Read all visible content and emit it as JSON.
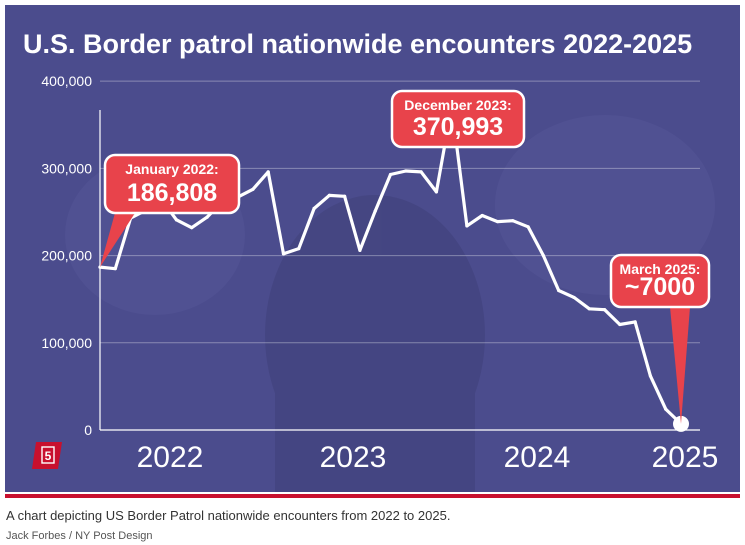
{
  "figure": {
    "background_color": "#4b4c8d",
    "accent_color": "#e8434b",
    "slide_number": "5"
  },
  "chart_data": {
    "type": "line",
    "title": "U.S. Border patrol nationwide encounters 2022-2025",
    "xlabel": "",
    "ylabel": "",
    "x_ticks": [
      "2022",
      "2023",
      "2024",
      "2025"
    ],
    "y_ticks": [
      "0",
      "100,000",
      "200,000",
      "300,000",
      "400,000"
    ],
    "ylim": [
      0,
      430000
    ],
    "grid": true,
    "series": [
      {
        "months": [
          "2022-01",
          "2022-02",
          "2022-03",
          "2022-04",
          "2022-05",
          "2022-06",
          "2022-07",
          "2022-08",
          "2022-09",
          "2022-10",
          "2022-11",
          "2022-12",
          "2023-01",
          "2023-02",
          "2023-03",
          "2023-04",
          "2023-05",
          "2023-06",
          "2023-07",
          "2023-08",
          "2023-09",
          "2023-10",
          "2023-11",
          "2023-12",
          "2024-01",
          "2024-02",
          "2024-03",
          "2024-04",
          "2024-05",
          "2024-06",
          "2024-07",
          "2024-08",
          "2024-09",
          "2024-10",
          "2024-11",
          "2024-12",
          "2025-01",
          "2025-02",
          "2025-03"
        ],
        "values": [
          186808,
          185000,
          243000,
          252000,
          265000,
          241000,
          232000,
          244000,
          262000,
          267000,
          276000,
          296000,
          202000,
          208000,
          254000,
          269000,
          268000,
          206000,
          251000,
          293000,
          297000,
          296000,
          273000,
          370993,
          234000,
          246000,
          239000,
          240000,
          233000,
          200000,
          160000,
          152000,
          139000,
          138000,
          121000,
          124000,
          62000,
          24000,
          7000
        ]
      }
    ],
    "annotations": [
      {
        "label": "January 2022:",
        "value": "186,808"
      },
      {
        "label": "December 2023:",
        "value": "370,993"
      },
      {
        "label": "March 2025:",
        "value": "~7000"
      }
    ]
  },
  "caption": "A chart depicting US Border Patrol nationwide encounters from 2022 to 2025.",
  "credit": "Jack Forbes / NY Post Design"
}
